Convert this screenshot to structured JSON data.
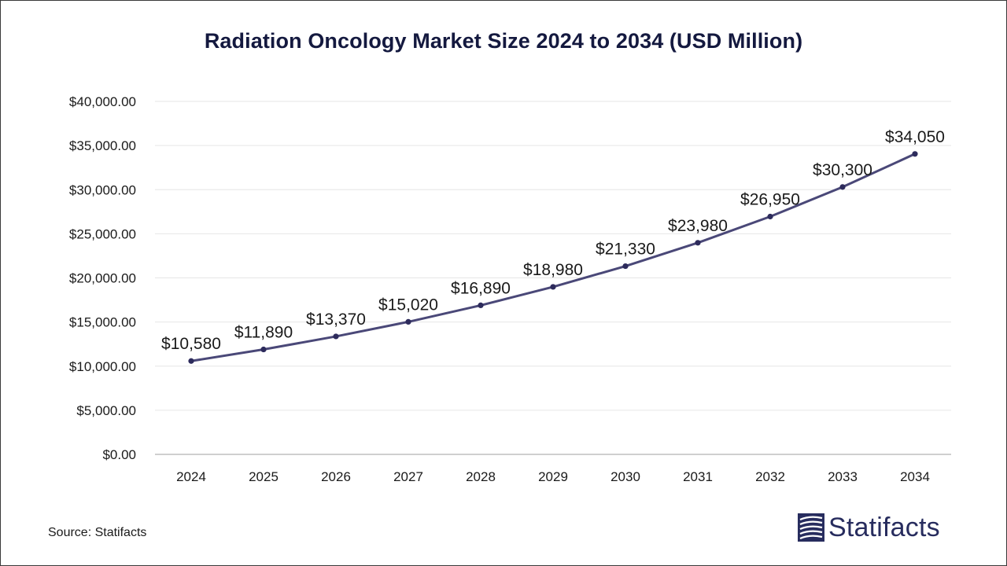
{
  "title": "Radiation Oncology Market Size 2024 to 2034 (USD Million)",
  "source": "Source: Statifacts",
  "brand": {
    "name": "Statifacts"
  },
  "colors": {
    "line": "#4a4878",
    "marker": "#2d2b5c",
    "title": "#14193f",
    "grid": "#e6e6e6",
    "axis": "#bfbfbf",
    "brand": "#272c5e"
  },
  "chart_data": {
    "type": "line",
    "title": "Radiation Oncology Market Size 2024 to 2034 (USD Million)",
    "xlabel": "",
    "ylabel": "",
    "categories": [
      "2024",
      "2025",
      "2026",
      "2027",
      "2028",
      "2029",
      "2030",
      "2031",
      "2032",
      "2033",
      "2034"
    ],
    "series": [
      {
        "values": [
          10580,
          11890,
          13370,
          15020,
          16890,
          18980,
          21330,
          23980,
          26950,
          30300,
          34050
        ],
        "labels": [
          "$10,580",
          "$11,890",
          "$13,370",
          "$15,020",
          "$16,890",
          "$18,980",
          "$21,330",
          "$23,980",
          "$26,950",
          "$30,300",
          "$34,050"
        ]
      }
    ],
    "ylim": [
      0,
      40000
    ],
    "yticks": [
      0,
      5000,
      10000,
      15000,
      20000,
      25000,
      30000,
      35000,
      40000
    ],
    "ytick_labels": [
      "$0.00",
      "$5,000.00",
      "$10,000.00",
      "$15,000.00",
      "$20,000.00",
      "$25,000.00",
      "$30,000.00",
      "$35,000.00",
      "$40,000.00"
    ],
    "grid": true,
    "legend": "none"
  }
}
